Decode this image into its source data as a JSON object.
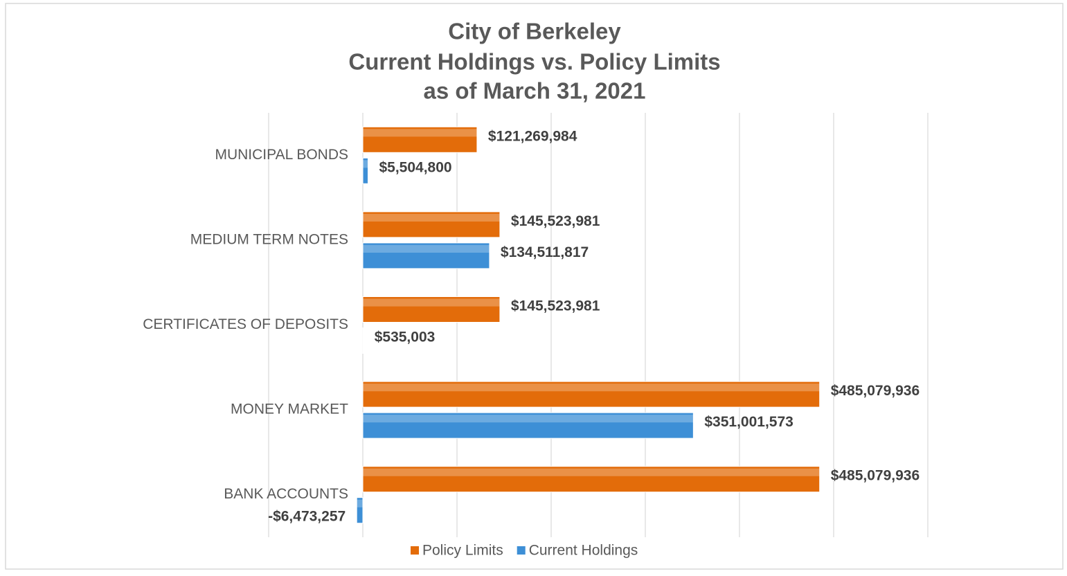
{
  "chart_data": {
    "type": "bar",
    "orientation": "horizontal",
    "title": [
      "City of Berkeley",
      "Current Holdings vs. Policy Limits",
      "as of March 31, 2021"
    ],
    "categories": [
      "MUNICIPAL BONDS",
      "MEDIUM TERM NOTES",
      "CERTIFICATES OF DEPOSITS",
      "MONEY MARKET",
      "BANK ACCOUNTS"
    ],
    "series": [
      {
        "name": "Policy Limits",
        "color": "#e36c0a",
        "values": [
          121269984,
          145523981,
          145523981,
          485079936,
          485079936
        ],
        "value_labels": [
          "$121,269,984",
          "$145,523,981",
          "$145,523,981",
          "$485,079,936",
          "$485,079,936"
        ]
      },
      {
        "name": "Current Holdings",
        "color": "#3d8fd6",
        "values": [
          5504800,
          134511817,
          535003,
          351001573,
          -6473257
        ],
        "value_labels": [
          "$5,504,800",
          "$134,511,817",
          "$535,003",
          "$351,001,573",
          "-$6,473,257"
        ]
      }
    ],
    "xlim": [
      -100000000,
      600000000
    ],
    "xticks": [
      -100000000,
      0,
      100000000,
      200000000,
      300000000,
      400000000,
      500000000,
      600000000
    ],
    "grid": true,
    "legend": "bottom"
  }
}
